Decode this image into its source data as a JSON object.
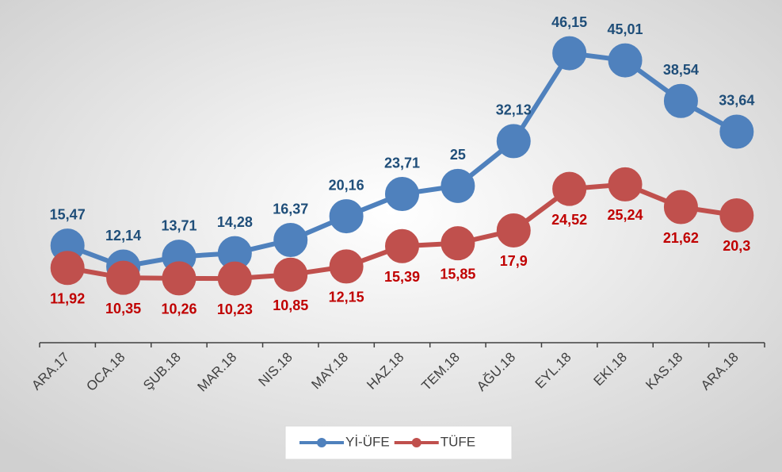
{
  "chart_data": {
    "type": "line",
    "categories": [
      "ARA.17",
      "OCA.18",
      "ŞUB.18",
      "MAR.18",
      "NIS.18",
      "MAY.18",
      "HAZ.18",
      "TEM.18",
      "AĞU.18",
      "EYL.18",
      "EKI.18",
      "KAS.18",
      "ARA.18"
    ],
    "series": [
      {
        "name": "Yİ-ÜFE",
        "color": "#4f81bd",
        "label_color": "#1f4e79",
        "label_position": "above",
        "values": [
          15.47,
          12.14,
          13.71,
          14.28,
          16.37,
          20.16,
          23.71,
          25,
          32.13,
          46.15,
          45.01,
          38.54,
          33.64
        ],
        "value_labels": [
          "15,47",
          "12,14",
          "13,71",
          "14,28",
          "16,37",
          "20,16",
          "23,71",
          "25",
          "32,13",
          "46,15",
          "45,01",
          "38,54",
          "33,64"
        ]
      },
      {
        "name": "TÜFE",
        "color": "#c0504d",
        "label_color": "#c00000",
        "label_position": "below",
        "values": [
          11.92,
          10.35,
          10.26,
          10.23,
          10.85,
          12.15,
          15.39,
          15.85,
          17.9,
          24.52,
          25.24,
          21.62,
          20.3
        ],
        "value_labels": [
          "11,92",
          "10,35",
          "10,26",
          "10,23",
          "10,85",
          "12,15",
          "15,39",
          "15,85",
          "17,9",
          "24,52",
          "25,24",
          "21,62",
          "20,3"
        ]
      }
    ],
    "ylim": [
      0,
      54
    ],
    "legend": "bottom"
  }
}
